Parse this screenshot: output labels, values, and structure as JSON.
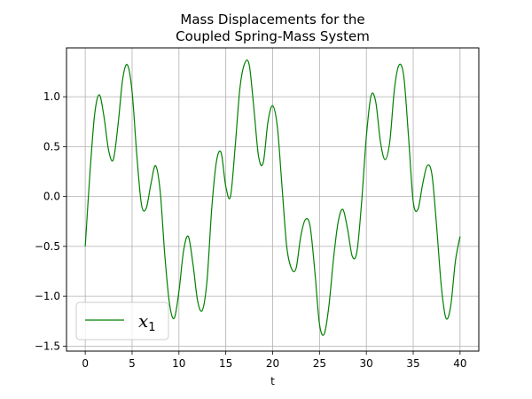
{
  "chart_data": {
    "type": "line",
    "title_line1": "Mass Displacements for the",
    "title_line2": "Coupled Spring-Mass System",
    "xlabel": "t",
    "ylabel": "",
    "xlim": [
      -2,
      42
    ],
    "ylim": [
      -1.55,
      1.49
    ],
    "xticks": [
      0,
      5,
      10,
      15,
      20,
      25,
      30,
      35,
      40
    ],
    "xtick_labels": [
      "0",
      "5",
      "10",
      "15",
      "20",
      "25",
      "30",
      "35",
      "40"
    ],
    "yticks": [
      -1.5,
      -1.0,
      -0.5,
      0.0,
      0.5,
      1.0
    ],
    "ytick_labels": [
      "−1.5",
      "−1.0",
      "−0.5",
      "0.0",
      "0.5",
      "1.0"
    ],
    "grid": true,
    "legend_position": "lower-left",
    "series": [
      {
        "name": "x",
        "name_subscript": "1",
        "color": "#008000",
        "x": [
          0.0,
          0.5,
          1.0,
          1.5,
          2.0,
          2.5,
          3.0,
          3.5,
          4.0,
          4.5,
          5.0,
          5.5,
          6.0,
          6.5,
          7.0,
          7.5,
          8.0,
          8.5,
          9.0,
          9.5,
          10.0,
          10.5,
          11.0,
          11.5,
          12.0,
          12.5,
          13.0,
          13.5,
          14.0,
          14.5,
          15.0,
          15.5,
          16.0,
          16.5,
          17.0,
          17.5,
          18.0,
          18.5,
          19.0,
          19.5,
          20.0,
          20.5,
          21.0,
          21.5,
          22.0,
          22.5,
          23.0,
          23.5,
          24.0,
          24.5,
          25.0,
          25.5,
          26.0,
          26.5,
          27.0,
          27.5,
          28.0,
          28.5,
          29.0,
          29.5,
          30.0,
          30.5,
          31.0,
          31.5,
          32.0,
          32.5,
          33.0,
          33.5,
          34.0,
          34.5,
          35.0,
          35.5,
          36.0,
          36.5,
          37.0,
          37.5,
          38.0,
          38.5,
          39.0,
          39.5,
          40.0
        ],
        "y": [
          -0.5,
          0.23,
          0.82,
          1.02,
          0.8,
          0.46,
          0.37,
          0.72,
          1.18,
          1.32,
          1.05,
          0.42,
          -0.08,
          -0.12,
          0.12,
          0.31,
          0.05,
          -0.6,
          -1.08,
          -1.22,
          -0.95,
          -0.54,
          -0.4,
          -0.68,
          -1.05,
          -1.14,
          -0.84,
          -0.12,
          0.35,
          0.44,
          0.1,
          0.0,
          0.5,
          1.08,
          1.33,
          1.32,
          0.88,
          0.4,
          0.34,
          0.75,
          0.91,
          0.7,
          0.1,
          -0.5,
          -0.72,
          -0.72,
          -0.4,
          -0.23,
          -0.3,
          -0.75,
          -1.28,
          -1.38,
          -1.1,
          -0.62,
          -0.25,
          -0.13,
          -0.33,
          -0.6,
          -0.55,
          -0.05,
          0.6,
          1.01,
          0.95,
          0.55,
          0.37,
          0.55,
          1.08,
          1.32,
          1.2,
          0.6,
          -0.05,
          -0.13,
          0.12,
          0.31,
          0.22,
          -0.3,
          -0.9,
          -1.22,
          -1.1,
          -0.65,
          -0.4
        ]
      }
    ]
  }
}
